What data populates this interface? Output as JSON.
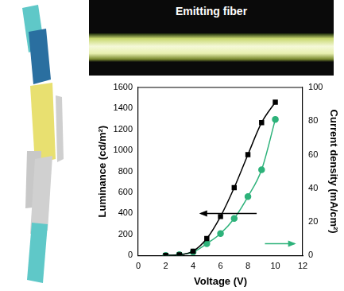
{
  "chart_data": {
    "type": "line",
    "xlabel": "Voltage (V)",
    "ylabel": "Luminance (cd/m²)",
    "y2label": "Current density (mA/cm²)",
    "x": [
      2,
      3,
      4,
      5,
      6,
      7,
      8,
      9,
      10
    ],
    "series": [
      {
        "color": "#000000",
        "marker": "square",
        "values": [
          0,
          5,
          40,
          160,
          370,
          645,
          960,
          1265,
          1460
        ]
      },
      {
        "color": "#2db27a",
        "marker": "circle",
        "axis": "y2",
        "values": [
          0,
          0.5,
          2,
          7,
          13,
          22,
          35,
          51,
          81
        ]
      }
    ],
    "xlim": [
      0,
      12
    ],
    "xticks": [
      0,
      2,
      4,
      6,
      8,
      10,
      12
    ],
    "ylim": [
      0,
      1600
    ],
    "yticks": [
      0,
      200,
      400,
      600,
      800,
      1000,
      1200,
      1400,
      1600
    ],
    "y2lim": [
      0,
      100
    ],
    "y2ticks": [
      0,
      20,
      40,
      60,
      80,
      100
    ]
  },
  "photo": {
    "label": "Emitting fiber"
  }
}
